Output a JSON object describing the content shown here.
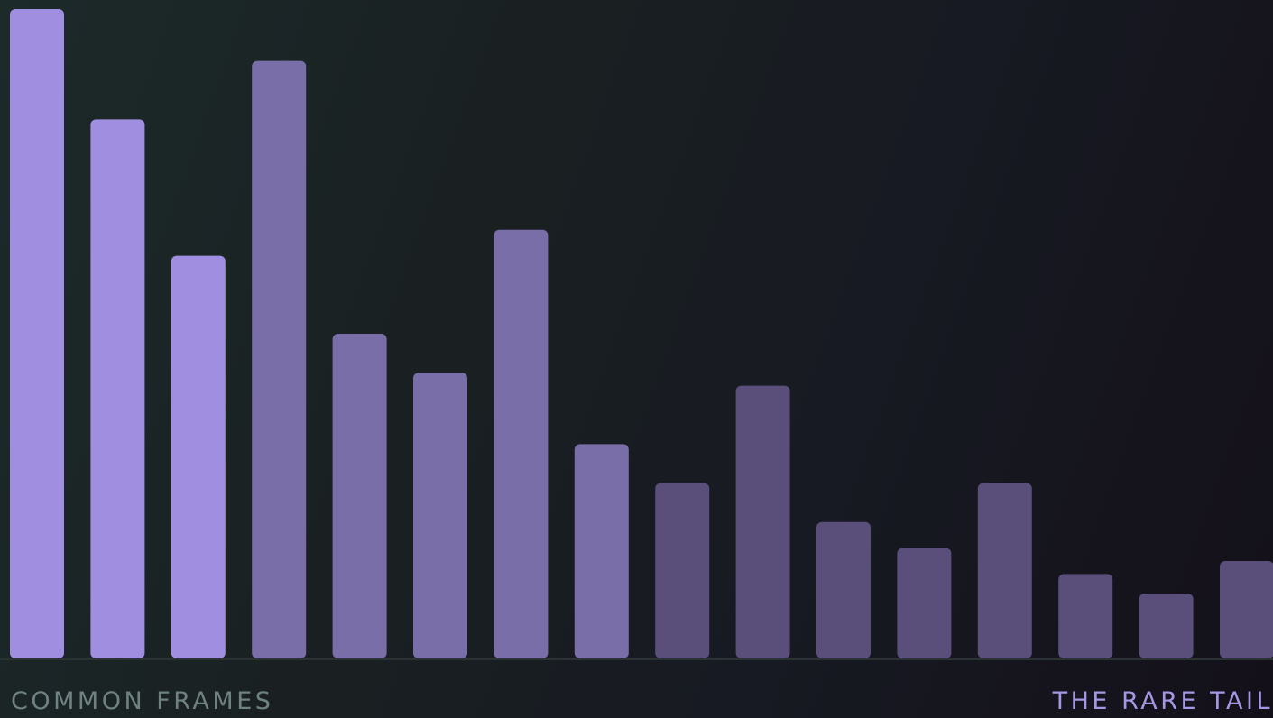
{
  "chart_data": {
    "type": "bar",
    "title": "",
    "xlabel": "",
    "ylabel": "",
    "values": [
      100,
      83,
      62,
      92,
      50,
      44,
      66,
      33,
      27,
      42,
      21,
      17,
      27,
      13,
      10,
      15
    ],
    "ylim": [
      0,
      100
    ],
    "grid": false,
    "legend": "none",
    "tier_colors": [
      "#a08fe0",
      "#a08fe0",
      "#a08fe0",
      "#7a6ea8",
      "#7a6ea8",
      "#7a6ea8",
      "#7a6ea8",
      "#7a6ea8",
      "#5a4e7a",
      "#5a4e7a",
      "#5a4e7a",
      "#5a4e7a",
      "#5a4e7a",
      "#5a4e7a",
      "#5a4e7a",
      "#5a4e7a"
    ],
    "baseline_color": "#2a3234"
  },
  "labels": {
    "left": "COMMON FRAMES",
    "right": "THE RARE TAIL"
  },
  "colors": {
    "left_label": "#6f8282",
    "right_label": "#a597e4"
  }
}
